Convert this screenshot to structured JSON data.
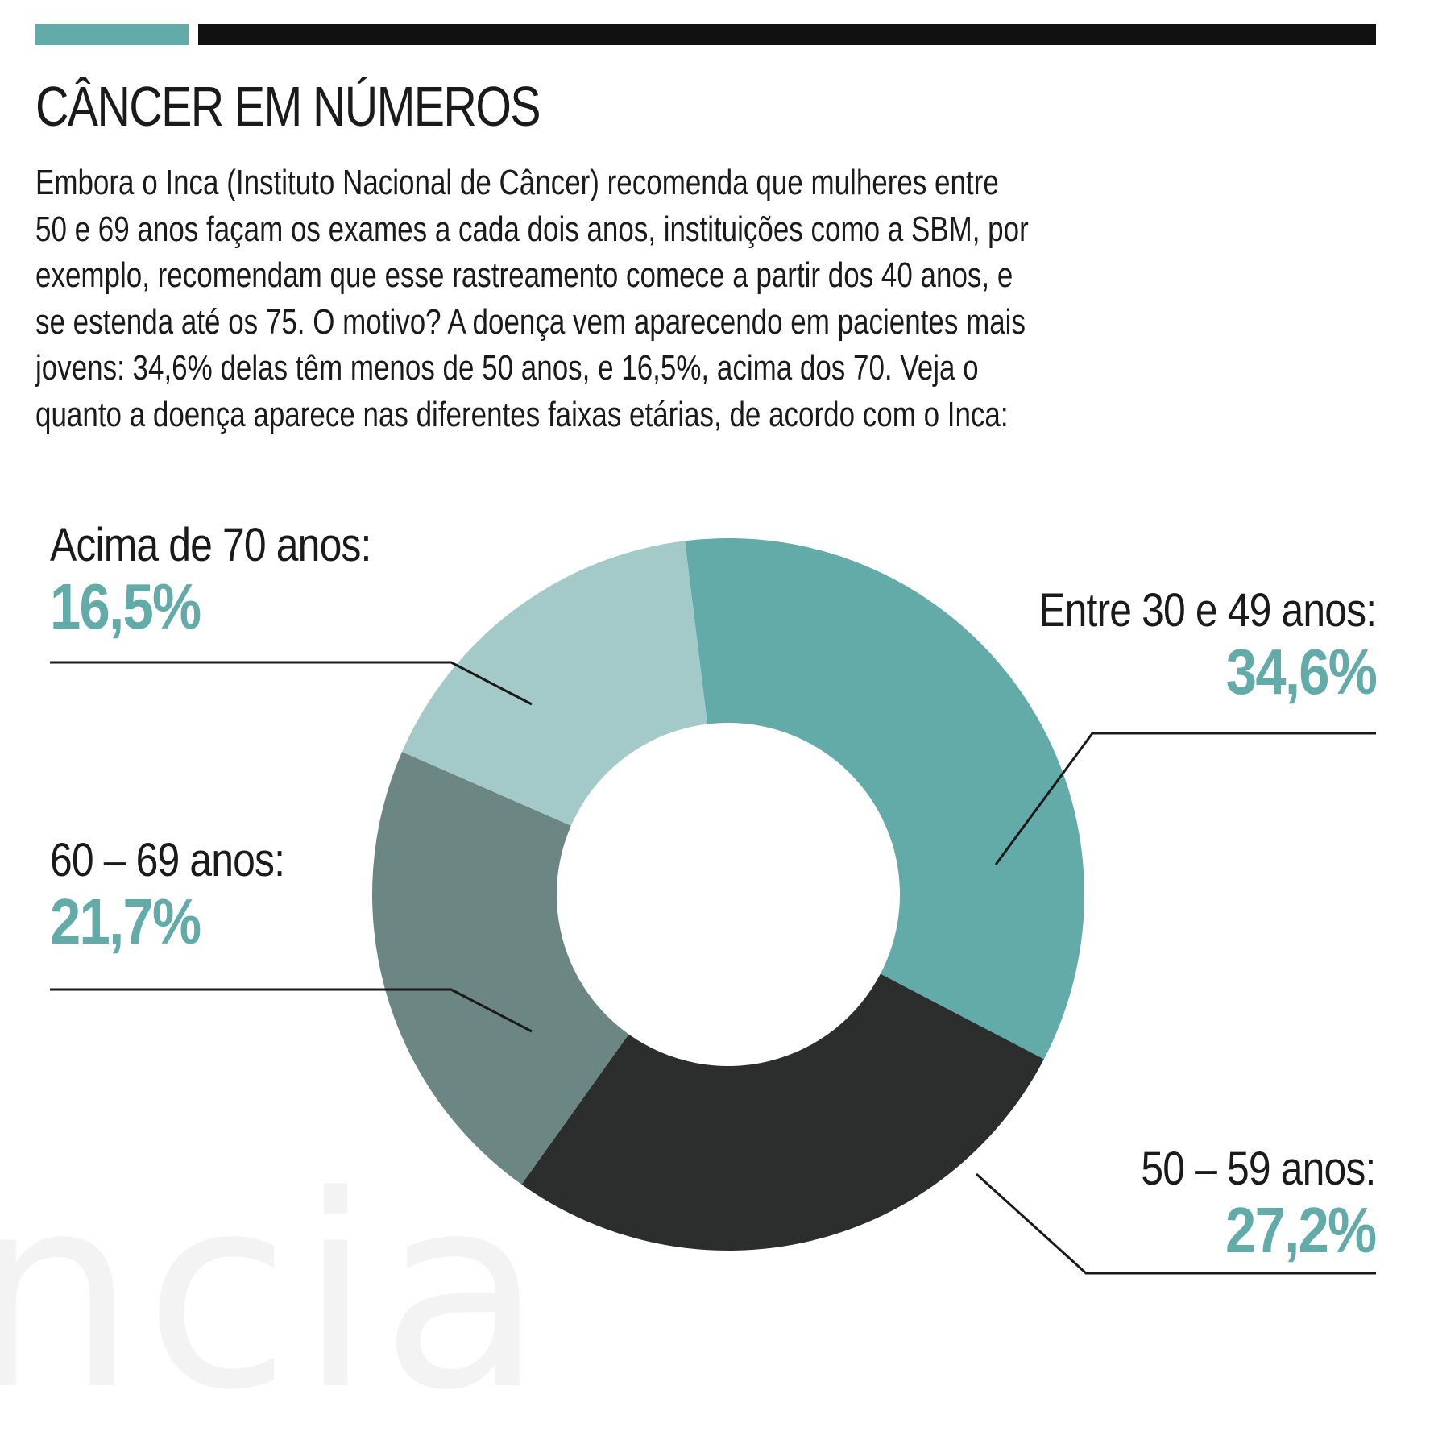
{
  "header": {
    "title": "CÂNCER EM NÚMEROS",
    "intro_lines": [
      "Embora o Inca (Instituto Nacional de Câncer) recomenda que mulheres entre",
      "50 e 69 anos façam os exames a cada dois anos, instituições como a SBM, por",
      "exemplo, recomendam que esse rastreamento comece a partir dos 40 anos, e",
      "se estenda até os 75. O motivo? A doença vem aparecendo em pacientes mais",
      "jovens: 34,6% delas têm menos de 50 anos, e 16,5%, acima dos 70. Veja o",
      "quanto a doença aparece nas diferentes faixas etárias, de acordo com o Inca:"
    ]
  },
  "colors": {
    "accent": "#62aba9",
    "header_bar": "#111111",
    "leader_line": "#1a1a1a"
  },
  "chart_data": {
    "type": "pie",
    "variant": "donut",
    "categories": [
      "Entre 30 e 49 anos:",
      "50 – 59 anos:",
      "60 – 69 anos:",
      "Acima de 70 anos:"
    ],
    "values": [
      34.6,
      27.2,
      21.7,
      16.5
    ],
    "value_labels": [
      "34,6%",
      "27,2%",
      "21,7%",
      "16,5%"
    ],
    "unit": "%",
    "colors": [
      "#62aba9",
      "#2b2e2c",
      "#6b8683",
      "#a3c9c8"
    ],
    "label_color": "#62aba9"
  },
  "watermark": "ncia"
}
